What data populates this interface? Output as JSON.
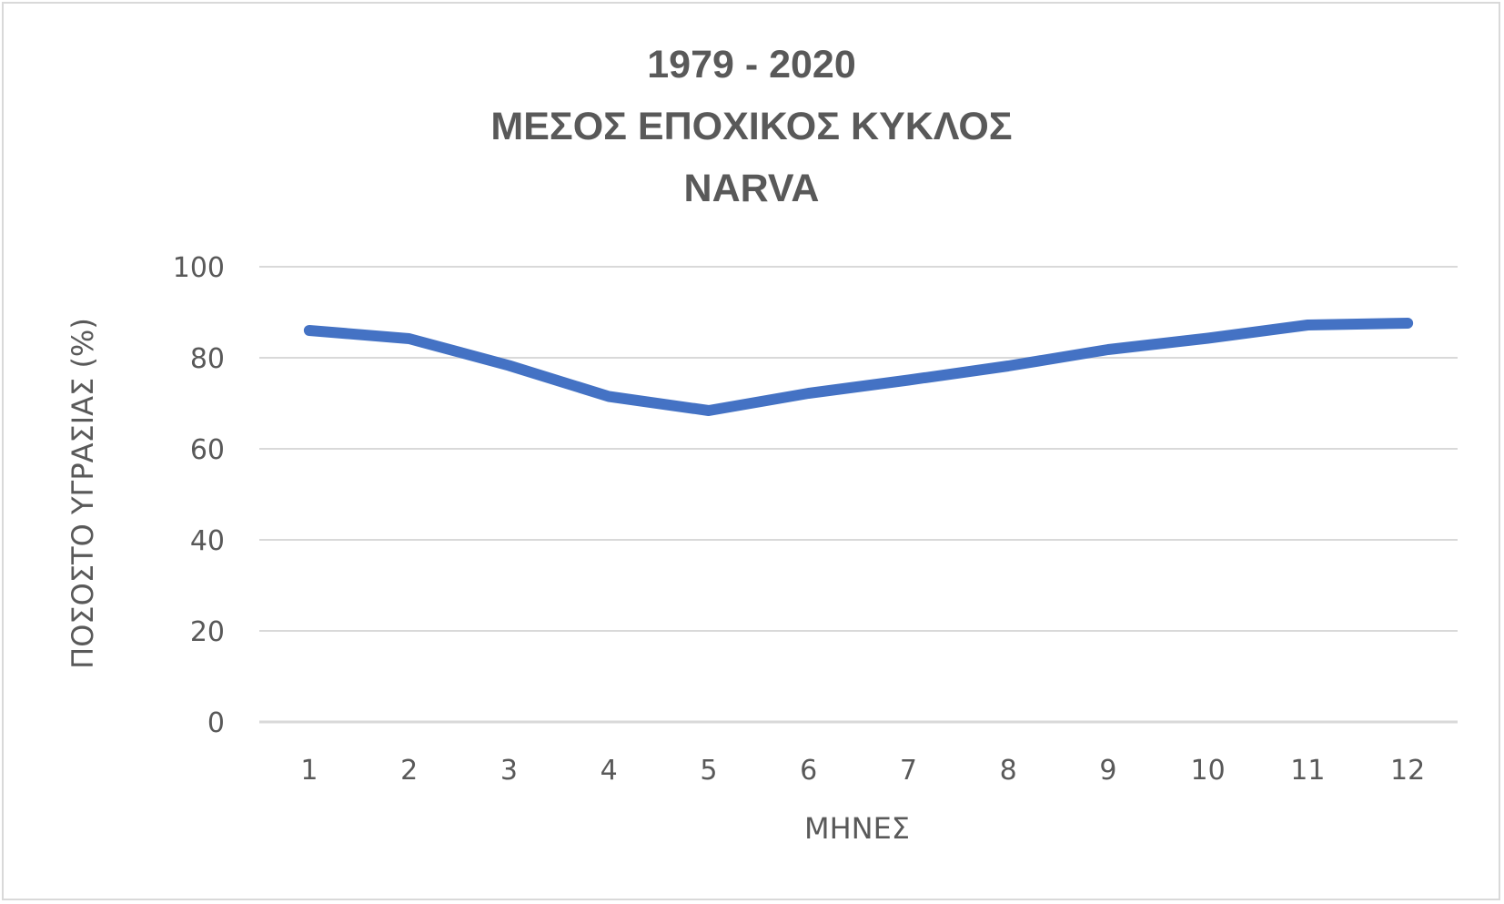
{
  "chart_data": {
    "type": "line",
    "title_lines": [
      "1979 - 2020",
      "ΜΕΣΟΣ ΕΠΟΧΙΚΟΣ ΚΥΚΛΟΣ",
      "NARVA"
    ],
    "xlabel": "ΜΗΝΕΣ",
    "ylabel": "ΠΟΣΟΣΤΟ ΥΓΡΑΣΙΑΣ (%)",
    "categories": [
      "1",
      "2",
      "3",
      "4",
      "5",
      "6",
      "7",
      "8",
      "9",
      "10",
      "11",
      "12"
    ],
    "ylim": [
      0,
      100
    ],
    "yticks": [
      "0",
      "20",
      "40",
      "60",
      "80",
      "100"
    ],
    "grid": true,
    "series": [
      {
        "values": [
          86,
          84.2,
          78.3,
          71.5,
          68.4,
          72.2,
          75.1,
          78.2,
          81.8,
          84.3,
          87.2,
          87.6
        ],
        "color": "#4472c4"
      }
    ]
  }
}
